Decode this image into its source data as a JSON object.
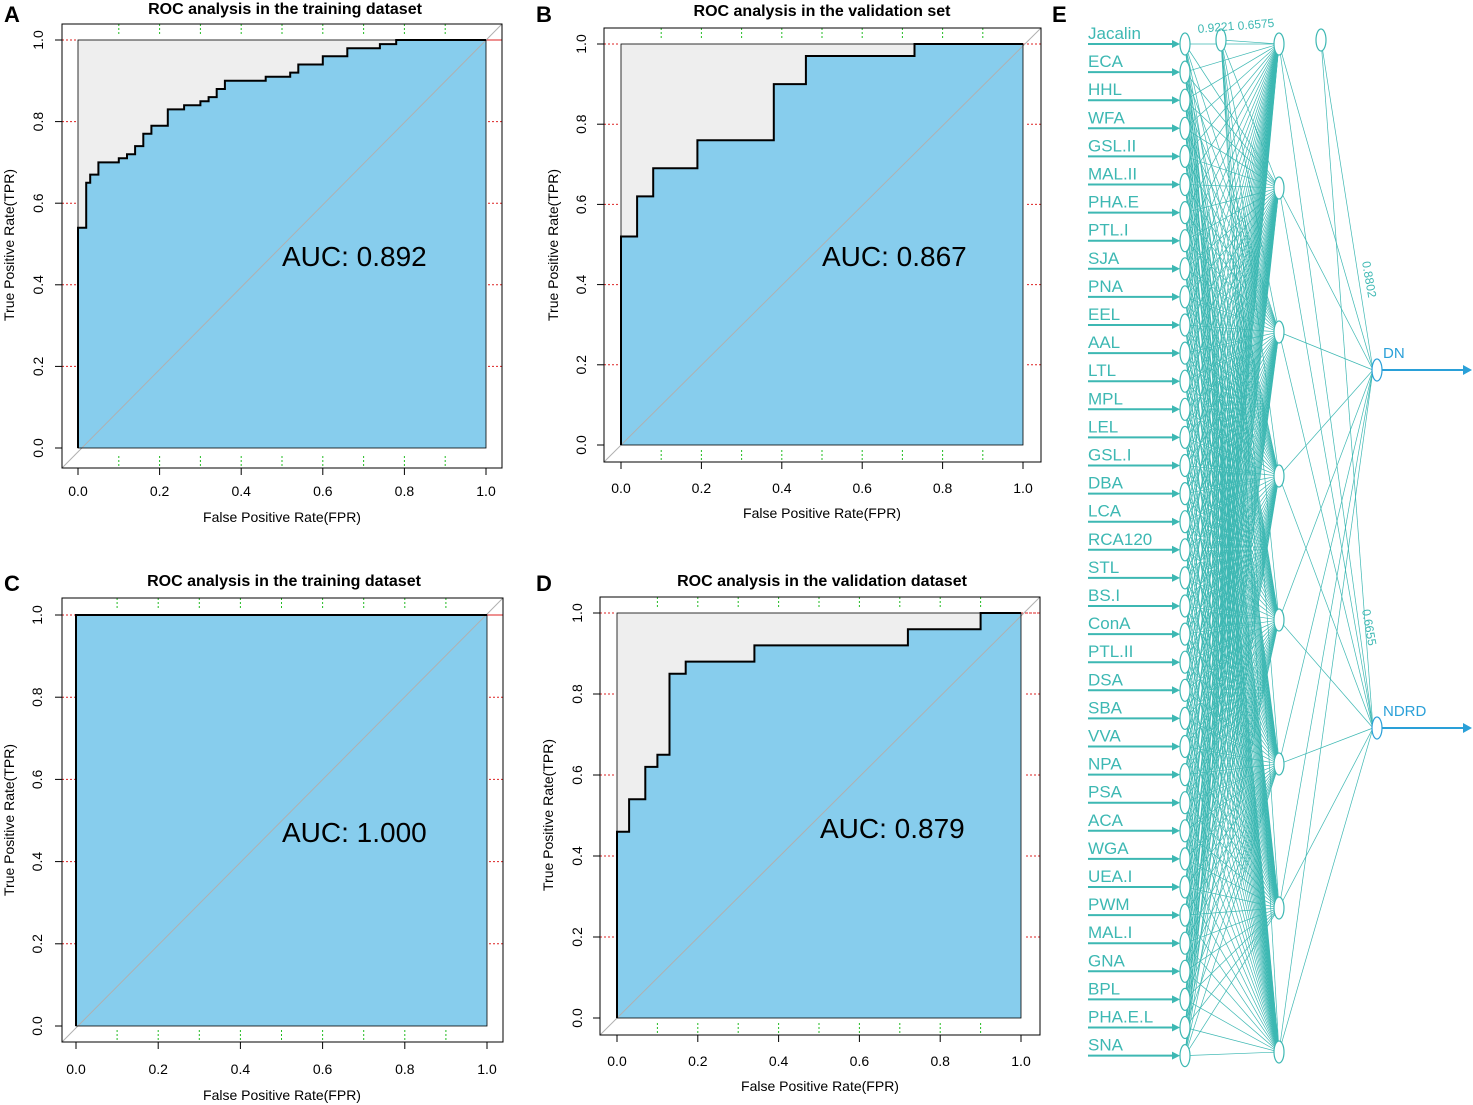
{
  "panels": [
    {
      "letter": "A",
      "title": "ROC analysis in the training dataset",
      "auc_text": "AUC: 0.892"
    },
    {
      "letter": "B",
      "title": "ROC analysis in the validation set",
      "auc_text": "AUC: 0.867"
    },
    {
      "letter": "C",
      "title": "ROC analysis in the training dataset",
      "auc_text": "AUC: 1.000"
    },
    {
      "letter": "D",
      "title": "ROC analysis in the validation dataset",
      "auc_text": "AUC: 0.879"
    },
    {
      "letter": "E"
    }
  ],
  "colors": {
    "fill_under": "#87cded",
    "fill_over": "#eeeeee",
    "grid_x": "#22bb22",
    "grid_y": "#dd2222",
    "curve": "#000000",
    "diagonal": "#b0b0b0",
    "network": "#3db8b3",
    "output_arrow": "#2aa0d8"
  },
  "chart_data": [
    {
      "type": "line",
      "title": "ROC analysis in the training dataset",
      "xlabel": "False Positive Rate(FPR)",
      "ylabel": "True Positive Rate(TPR)",
      "xlim": [
        0,
        1
      ],
      "ylim": [
        0,
        1
      ],
      "xticks": [
        "0.0",
        "0.2",
        "0.4",
        "0.6",
        "0.8",
        "1.0"
      ],
      "yticks": [
        "0.0",
        "0.2",
        "0.4",
        "0.6",
        "0.8",
        "1.0"
      ],
      "auc": 0.892,
      "series": [
        {
          "name": "ROC",
          "x": [
            0,
            0,
            0.02,
            0.02,
            0.03,
            0.03,
            0.05,
            0.05,
            0.1,
            0.1,
            0.12,
            0.12,
            0.14,
            0.14,
            0.16,
            0.16,
            0.18,
            0.18,
            0.22,
            0.22,
            0.26,
            0.26,
            0.3,
            0.3,
            0.32,
            0.32,
            0.34,
            0.34,
            0.36,
            0.36,
            0.46,
            0.46,
            0.52,
            0.52,
            0.54,
            0.54,
            0.6,
            0.6,
            0.66,
            0.66,
            0.74,
            0.74,
            0.78,
            0.78,
            1.0
          ],
          "y": [
            0,
            0.54,
            0.54,
            0.65,
            0.65,
            0.67,
            0.67,
            0.7,
            0.7,
            0.71,
            0.71,
            0.72,
            0.72,
            0.74,
            0.74,
            0.77,
            0.77,
            0.79,
            0.79,
            0.83,
            0.83,
            0.84,
            0.84,
            0.85,
            0.85,
            0.86,
            0.86,
            0.88,
            0.88,
            0.9,
            0.9,
            0.91,
            0.91,
            0.92,
            0.92,
            0.94,
            0.94,
            0.96,
            0.96,
            0.98,
            0.98,
            0.99,
            0.99,
            1.0,
            1.0
          ]
        }
      ]
    },
    {
      "type": "line",
      "title": "ROC analysis in the validation set",
      "xlabel": "False Positive Rate(FPR)",
      "ylabel": "True Positive Rate(TPR)",
      "xlim": [
        0,
        1
      ],
      "ylim": [
        0,
        1
      ],
      "xticks": [
        "0.0",
        "0.2",
        "0.4",
        "0.6",
        "0.8",
        "1.0"
      ],
      "yticks": [
        "0.0",
        "0.2",
        "0.4",
        "0.6",
        "0.8",
        "1.0"
      ],
      "auc": 0.867,
      "series": [
        {
          "name": "ROC",
          "x": [
            0,
            0,
            0.04,
            0.04,
            0.08,
            0.08,
            0.19,
            0.19,
            0.38,
            0.38,
            0.46,
            0.46,
            0.73,
            0.73,
            1.0
          ],
          "y": [
            0,
            0.52,
            0.52,
            0.62,
            0.62,
            0.69,
            0.69,
            0.76,
            0.76,
            0.9,
            0.9,
            0.97,
            0.97,
            1.0,
            1.0
          ]
        }
      ]
    },
    {
      "type": "line",
      "title": "ROC analysis in the training dataset",
      "xlabel": "False Positive Rate(FPR)",
      "ylabel": "True Positive Rate(TPR)",
      "xlim": [
        0,
        1
      ],
      "ylim": [
        0,
        1
      ],
      "xticks": [
        "0.0",
        "0.2",
        "0.4",
        "0.6",
        "0.8",
        "1.0"
      ],
      "yticks": [
        "0.0",
        "0.2",
        "0.4",
        "0.6",
        "0.8",
        "1.0"
      ],
      "auc": 1.0,
      "series": [
        {
          "name": "ROC",
          "x": [
            0,
            0,
            1.0
          ],
          "y": [
            0,
            1.0,
            1.0
          ]
        }
      ]
    },
    {
      "type": "line",
      "title": "ROC analysis in the validation dataset",
      "xlabel": "False Positive Rate(FPR)",
      "ylabel": "True Positive Rate(TPR)",
      "xlim": [
        0,
        1
      ],
      "ylim": [
        0,
        1
      ],
      "xticks": [
        "0.0",
        "0.2",
        "0.4",
        "0.6",
        "0.8",
        "1.0"
      ],
      "yticks": [
        "0.0",
        "0.2",
        "0.4",
        "0.6",
        "0.8",
        "1.0"
      ],
      "auc": 0.879,
      "series": [
        {
          "name": "ROC",
          "x": [
            0,
            0,
            0.03,
            0.03,
            0.07,
            0.07,
            0.1,
            0.1,
            0.13,
            0.13,
            0.17,
            0.17,
            0.34,
            0.34,
            0.72,
            0.72,
            0.9,
            0.9,
            1.0
          ],
          "y": [
            0,
            0.46,
            0.46,
            0.54,
            0.54,
            0.62,
            0.62,
            0.65,
            0.65,
            0.85,
            0.85,
            0.88,
            0.88,
            0.92,
            0.92,
            0.96,
            0.96,
            1.0,
            1.0
          ]
        }
      ]
    }
  ],
  "network": {
    "inputs": [
      "Jacalin",
      "ECA",
      "HHL",
      "WFA",
      "GSL.II",
      "MAL.II",
      "PHA.E",
      "PTL.I",
      "SJA",
      "PNA",
      "EEL",
      "AAL",
      "LTL",
      "MPL",
      "LEL",
      "GSL.I",
      "DBA",
      "LCA",
      "RCA120",
      "STL",
      "BS.I",
      "ConA",
      "PTL.II",
      "DSA",
      "SBA",
      "VVA",
      "NPA",
      "PSA",
      "ACA",
      "WGA",
      "UEA.I",
      "PWM",
      "MAL.I",
      "GNA",
      "BPL",
      "PHA.E.L",
      "SNA"
    ],
    "outputs": [
      "DN",
      "NDRD"
    ],
    "weight_labels": [
      "0.9221",
      "0.6575",
      "0.8802",
      "0.6655"
    ],
    "hidden_nodes": 8
  }
}
